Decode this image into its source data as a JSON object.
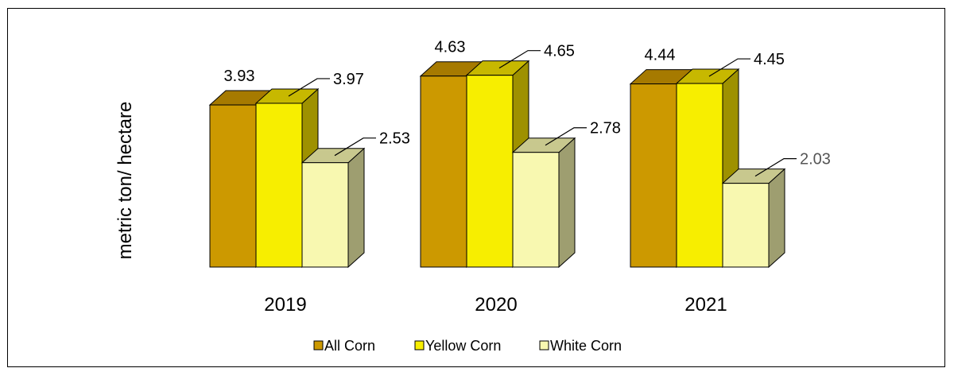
{
  "chart_data": {
    "type": "bar",
    "ylabel": "metric ton/ hectare",
    "categories": [
      "2019",
      "2020",
      "2021"
    ],
    "series": [
      {
        "name": "All Corn",
        "values": [
          3.93,
          4.63,
          4.44
        ],
        "color": "#CC9900",
        "top_color": "#A67A00",
        "side_color": "#8C6B00"
      },
      {
        "name": "Yellow Corn",
        "values": [
          3.97,
          4.65,
          4.45
        ],
        "color": "#F7EE00",
        "top_color": "#C7B800",
        "side_color": "#9E9100"
      },
      {
        "name": "White Corn",
        "values": [
          2.53,
          2.78,
          2.03
        ],
        "color": "#F8F8B0",
        "top_color": "#C8C88E",
        "side_color": "#9E9E70"
      }
    ],
    "data_labels": [
      [
        "3.93",
        "3.97",
        "2.53"
      ],
      [
        "4.63",
        "4.65",
        "2.78"
      ],
      [
        "4.44",
        "4.45",
        "2.03"
      ]
    ],
    "ylim": [
      0,
      5
    ],
    "grid": false,
    "legend_position": "bottom"
  }
}
